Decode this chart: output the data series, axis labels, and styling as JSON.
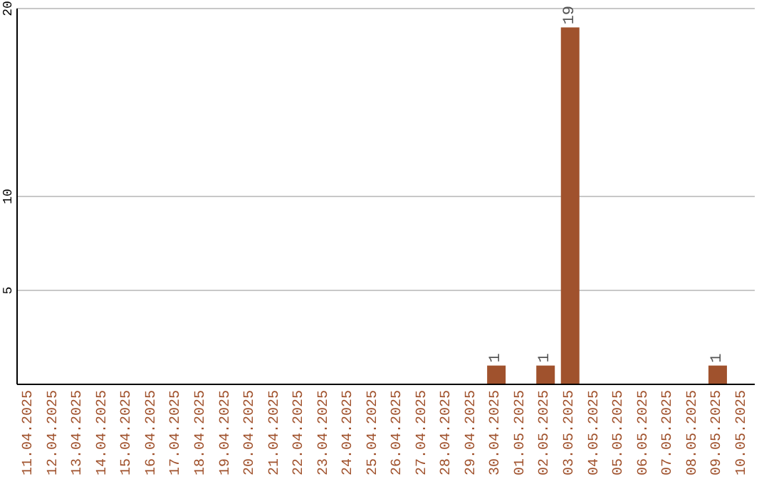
{
  "chart_data": {
    "type": "bar",
    "categories": [
      "11.04.2025",
      "12.04.2025",
      "13.04.2025",
      "14.04.2025",
      "15.04.2025",
      "16.04.2025",
      "17.04.2025",
      "18.04.2025",
      "19.04.2025",
      "20.04.2025",
      "21.04.2025",
      "22.04.2025",
      "23.04.2025",
      "24.04.2025",
      "25.04.2025",
      "26.04.2025",
      "27.04.2025",
      "28.04.2025",
      "29.04.2025",
      "30.04.2025",
      "01.05.2025",
      "02.05.2025",
      "03.05.2025",
      "04.05.2025",
      "05.05.2025",
      "06.05.2025",
      "07.05.2025",
      "08.05.2025",
      "09.05.2025",
      "10.05.2025"
    ],
    "series": [
      {
        "color": "#a0522d",
        "values": [
          0,
          0,
          0,
          0,
          0,
          0,
          0,
          0,
          0,
          0,
          0,
          0,
          0,
          0,
          0,
          0,
          0,
          0,
          0,
          1,
          0,
          1,
          19,
          0,
          0,
          0,
          0,
          0,
          1,
          0
        ],
        "value_labels": [
          null,
          null,
          null,
          null,
          null,
          null,
          null,
          null,
          null,
          null,
          null,
          null,
          null,
          null,
          null,
          null,
          null,
          null,
          null,
          "1",
          null,
          "1",
          "19",
          null,
          null,
          null,
          null,
          null,
          "1",
          null
        ]
      }
    ],
    "ylim": [
      0,
      20
    ],
    "yticks": [
      5,
      10,
      20
    ],
    "grid": "y"
  }
}
